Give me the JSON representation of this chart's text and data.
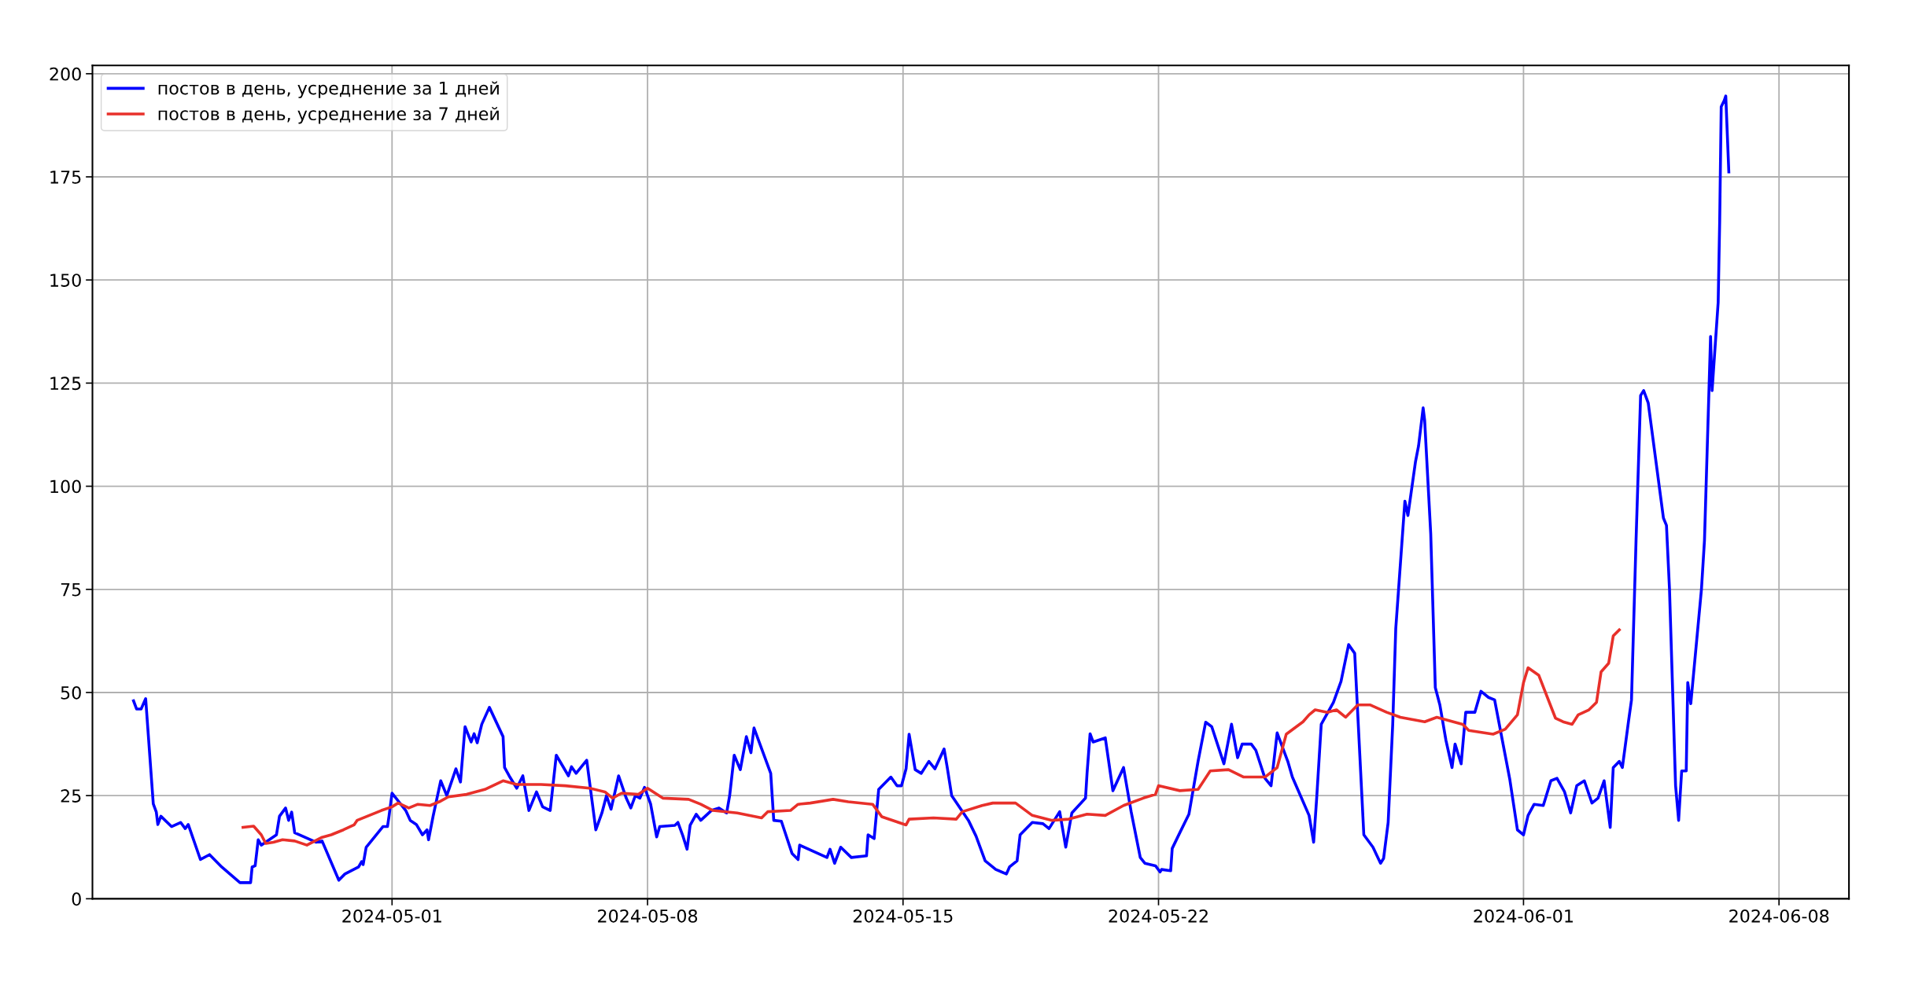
{
  "chart_data": {
    "type": "line",
    "xlim": [
      "2024-04-22T19:00",
      "2024-06-09T22:00"
    ],
    "xticks": [
      "2024-05-01",
      "2024-05-08",
      "2024-05-15",
      "2024-05-22",
      "2024-06-01",
      "2024-06-08"
    ],
    "ylim": [
      0,
      202
    ],
    "yticks": [
      0,
      25,
      50,
      75,
      100,
      125,
      150,
      175,
      200
    ],
    "grid": true,
    "legend": "top left",
    "line_style": "solid",
    "marker": "none",
    "series": [
      {
        "name": "постов в день, усреднение за 1 дней",
        "color": "#0000ff",
        "x": [
          "2024-04-23T22:00",
          "2024-04-24T00:00",
          "2024-04-24T03:00",
          "2024-04-24T06:00",
          "2024-04-24T11:00",
          "2024-04-24T13:00",
          "2024-04-24T14:00",
          "2024-04-24T16:00",
          "2024-04-24T23:00",
          "2024-04-25T05:00",
          "2024-04-25T08:00",
          "2024-04-25T10:00",
          "2024-04-25T18:00",
          "2024-04-26T00:00",
          "2024-04-26T08:00",
          "2024-04-26T20:00",
          "2024-04-27T03:00",
          "2024-04-27T04:00",
          "2024-04-27T06:00",
          "2024-04-27T08:00",
          "2024-04-27T10:00",
          "2024-04-27T20:00",
          "2024-04-27T22:00",
          "2024-04-28T02:00",
          "2024-04-28T04:00",
          "2024-04-28T06:00",
          "2024-04-28T08:00",
          "2024-04-28T22:00",
          "2024-04-29T02:00",
          "2024-04-29T13:00",
          "2024-04-29T17:00",
          "2024-04-30T02:00",
          "2024-04-30T04:00",
          "2024-04-30T05:00",
          "2024-04-30T07:00",
          "2024-04-30T18:00",
          "2024-04-30T21:00",
          "2024-04-30T22:00",
          "2024-05-01T00:00",
          "2024-05-01T09:00",
          "2024-05-01T12:00",
          "2024-05-01T16:00",
          "2024-05-01T20:00",
          "2024-05-01T23:00",
          "2024-05-02T00:00",
          "2024-05-02T03:00",
          "2024-05-02T08:00",
          "2024-05-02T12:00",
          "2024-05-02T18:00",
          "2024-05-02T21:00",
          "2024-05-03T00:00",
          "2024-05-03T04:00",
          "2024-05-03T06:00",
          "2024-05-03T08:00",
          "2024-05-03T11:00",
          "2024-05-03T16:00",
          "2024-05-04T01:00",
          "2024-05-04T02:00",
          "2024-05-04T05:00",
          "2024-05-04T10:00",
          "2024-05-04T14:00",
          "2024-05-04T18:00",
          "2024-05-04T23:00",
          "2024-05-05T03:00",
          "2024-05-05T08:00",
          "2024-05-05T12:00",
          "2024-05-05T20:00",
          "2024-05-05T22:00",
          "2024-05-06T01:00",
          "2024-05-06T08:00",
          "2024-05-06T14:00",
          "2024-05-06T18:00",
          "2024-05-06T21:00",
          "2024-05-07T00:00",
          "2024-05-07T05:00",
          "2024-05-07T10:00",
          "2024-05-07T13:00",
          "2024-05-07T16:00",
          "2024-05-07T19:00",
          "2024-05-07T22:00",
          "2024-05-08T02:00",
          "2024-05-08T06:00",
          "2024-05-08T08:00",
          "2024-05-08T18:00",
          "2024-05-08T20:00",
          "2024-05-08T23:00",
          "2024-05-09T02:00",
          "2024-05-09T04:00",
          "2024-05-09T08:00",
          "2024-05-09T11:00",
          "2024-05-09T18:00",
          "2024-05-09T23:00",
          "2024-05-10T04:00",
          "2024-05-10T06:00",
          "2024-05-10T09:00",
          "2024-05-10T13:00",
          "2024-05-10T17:00",
          "2024-05-10T20:00",
          "2024-05-10T22:00",
          "2024-05-11T09:00",
          "2024-05-11T11:00",
          "2024-05-11T16:00",
          "2024-05-11T23:00",
          "2024-05-12T03:00",
          "2024-05-12T04:00",
          "2024-05-12T22:00",
          "2024-05-13T00:00",
          "2024-05-13T03:00",
          "2024-05-13T07:00",
          "2024-05-13T14:00",
          "2024-05-14T00:00",
          "2024-05-14T01:00",
          "2024-05-14T05:00",
          "2024-05-14T08:00",
          "2024-05-14T16:00",
          "2024-05-14T20:00",
          "2024-05-14T23:00",
          "2024-05-15T02:00",
          "2024-05-15T04:00",
          "2024-05-15T08:00",
          "2024-05-15T12:00",
          "2024-05-15T17:00",
          "2024-05-15T21:00",
          "2024-05-16T03:00",
          "2024-05-16T05:00",
          "2024-05-16T08:00",
          "2024-05-16T19:00",
          "2024-05-17T00:00",
          "2024-05-17T06:00",
          "2024-05-17T13:00",
          "2024-05-17T20:00",
          "2024-05-17T22:00",
          "2024-05-18T03:00",
          "2024-05-18T05:00",
          "2024-05-18T13:00",
          "2024-05-18T20:00",
          "2024-05-19T00:00",
          "2024-05-19T07:00",
          "2024-05-19T11:00",
          "2024-05-19T15:00",
          "2024-05-20T00:00",
          "2024-05-20T01:00",
          "2024-05-20T03:00",
          "2024-05-20T05:00",
          "2024-05-20T13:00",
          "2024-05-20T18:00",
          "2024-05-21T01:00",
          "2024-05-21T06:00",
          "2024-05-21T12:00",
          "2024-05-21T15:00",
          "2024-05-21T22:00",
          "2024-05-22T01:00",
          "2024-05-22T02:00",
          "2024-05-22T08:00",
          "2024-05-22T09:00",
          "2024-05-22T14:00",
          "2024-05-22T20:00",
          "2024-05-23T02:00",
          "2024-05-23T07:00",
          "2024-05-23T11:00",
          "2024-05-23T15:00",
          "2024-05-23T19:00",
          "2024-05-24T00:00",
          "2024-05-24T04:00",
          "2024-05-24T07:00",
          "2024-05-24T09:00",
          "2024-05-24T13:00",
          "2024-05-24T16:00",
          "2024-05-24T22:00",
          "2024-05-25T02:00",
          "2024-05-25T06:00",
          "2024-05-25T13:00",
          "2024-05-25T16:00",
          "2024-05-26T03:00",
          "2024-05-26T06:00",
          "2024-05-26T08:00",
          "2024-05-26T11:00",
          "2024-05-26T19:00",
          "2024-05-27T00:00",
          "2024-05-27T05:00",
          "2024-05-27T09:00",
          "2024-05-27T15:00",
          "2024-05-27T21:00",
          "2024-05-28T02:00",
          "2024-05-28T04:00",
          "2024-05-28T07:00",
          "2024-05-28T10:00",
          "2024-05-28T12:00",
          "2024-05-28T18:00",
          "2024-05-28T20:00",
          "2024-05-29T01:00",
          "2024-05-29T03:00",
          "2024-05-29T06:00",
          "2024-05-29T07:00",
          "2024-05-29T11:00",
          "2024-05-29T14:00",
          "2024-05-29T17:00",
          "2024-05-29T21:00",
          "2024-05-30T01:00",
          "2024-05-30T03:00",
          "2024-05-30T07:00",
          "2024-05-30T10:00",
          "2024-05-30T16:00",
          "2024-05-30T20:00",
          "2024-05-31T01:00",
          "2024-05-31T05:00",
          "2024-05-31T15:00",
          "2024-05-31T20:00",
          "2024-06-01T00:00",
          "2024-06-01T03:00",
          "2024-06-01T07:00",
          "2024-06-01T13:00",
          "2024-06-01T18:00",
          "2024-06-01T22:00",
          "2024-06-02T03:00",
          "2024-06-02T07:00",
          "2024-06-02T11:00",
          "2024-06-02T16:00",
          "2024-06-02T21:00",
          "2024-06-03T01:00",
          "2024-06-03T05:00",
          "2024-06-03T09:00",
          "2024-06-03T11:00",
          "2024-06-03T15:00",
          "2024-06-03T17:00",
          "2024-06-03T21:00",
          "2024-06-03T23:00",
          "2024-06-04T02:00",
          "2024-06-04T05:00",
          "2024-06-04T07:00",
          "2024-06-04T10:00",
          "2024-06-04T20:00",
          "2024-06-04T22:00",
          "2024-06-05T00:00",
          "2024-06-05T04:00",
          "2024-06-05T06:00",
          "2024-06-05T08:00",
          "2024-06-05T11:00",
          "2024-06-05T12:00",
          "2024-06-05T14:00",
          "2024-06-05T21:00",
          "2024-06-05T23:00",
          "2024-06-06T03:00",
          "2024-06-06T04:00",
          "2024-06-06T08:00",
          "2024-06-06T09:00",
          "2024-06-06T10:00",
          "2024-06-06T12:00",
          "2024-06-06T13:00",
          "2024-06-06T15:00"
        ],
        "values": [
          48,
          46,
          46,
          48.5,
          23,
          21,
          18,
          20,
          17.5,
          18.5,
          17,
          18,
          9.5,
          10.7,
          7.7,
          3.9,
          3.9,
          7.7,
          8,
          14.3,
          13,
          15.5,
          20,
          22,
          19,
          21,
          16,
          13.7,
          14,
          4.5,
          6,
          7.7,
          9,
          8.3,
          12.5,
          17.5,
          17.5,
          20,
          25.6,
          21.4,
          19,
          18,
          15.5,
          16.7,
          14.3,
          20,
          28.6,
          25,
          31.5,
          28.3,
          41.7,
          38,
          40,
          37.8,
          42.3,
          46.4,
          39.3,
          31.8,
          29.8,
          26.8,
          29.8,
          21.4,
          25.9,
          22.3,
          21.4,
          34.8,
          29.8,
          32,
          30.4,
          33.6,
          16.7,
          20.8,
          25,
          21.7,
          29.8,
          24.4,
          22,
          25,
          24.4,
          27,
          23,
          15,
          17.5,
          17.8,
          18.5,
          15.5,
          12,
          17.8,
          20.5,
          19,
          21.4,
          22,
          20.8,
          25,
          34.8,
          31.3,
          39.3,
          35.4,
          41.4,
          30.4,
          19,
          18.8,
          11,
          9.5,
          13,
          10,
          12,
          8.6,
          12.5,
          10,
          10.4,
          15.5,
          14.6,
          26.5,
          29.5,
          27.4,
          27.4,
          31.5,
          39.9,
          31.3,
          30.4,
          33.3,
          31.5,
          36.3,
          32,
          25,
          19,
          15.2,
          9.2,
          7.1,
          6,
          7.7,
          9.2,
          15.5,
          18.5,
          18.2,
          17,
          21.1,
          12.5,
          20.8,
          24.4,
          30.4,
          40,
          38,
          39,
          26.2,
          31.8,
          21.1,
          10,
          8.6,
          8,
          6.5,
          7.1,
          6.8,
          12.2,
          16,
          20.5,
          33.3,
          42.8,
          41.7,
          37.2,
          32.7,
          42.3,
          34.2,
          37.5,
          37.5,
          37.5,
          36,
          29.2,
          27.4,
          40.2,
          33.3,
          29.5,
          20.2,
          13.7,
          24.4,
          42.3,
          47.6,
          52.7,
          61.6,
          59.5,
          15.5,
          12.5,
          8.6,
          9.8,
          18.5,
          42.3,
          65.5,
          96.4,
          92.9,
          106,
          109.8,
          119,
          116,
          88.4,
          51.2,
          47,
          38.4,
          31.8,
          37.5,
          32.7,
          45.2,
          45.2,
          50.3,
          48.8,
          48.2,
          28.9,
          16.7,
          15.5,
          20.2,
          22.9,
          22.6,
          28.6,
          29.2,
          25.9,
          20.8,
          27.4,
          28.6,
          23.2,
          24.4,
          28.6,
          17.3,
          31.8,
          33.3,
          31.8,
          42.9,
          48.2,
          86.9,
          122,
          123.2,
          120.2,
          92.3,
          90.5,
          75,
          27.4,
          19,
          31,
          31,
          52.4,
          47.3,
          75,
          86.9,
          136.3,
          123.2,
          144.6,
          164.3,
          192,
          193.5,
          194.6,
          176.2
        ]
      },
      {
        "name": "постов в день, усреднение за 7 дней",
        "color": "#e8302a",
        "x": [
          "2024-04-26T22:00",
          "2024-04-27T05:00",
          "2024-04-27T10:00",
          "2024-04-27T13:00",
          "2024-04-27T18:00",
          "2024-04-28T00:00",
          "2024-04-28T08:00",
          "2024-04-28T16:00",
          "2024-04-29T02:00",
          "2024-04-29T08:00",
          "2024-04-29T16:00",
          "2024-04-29T23:00",
          "2024-04-30T01:00",
          "2024-04-30T09:00",
          "2024-04-30T17:00",
          "2024-05-01T00:00",
          "2024-05-01T04:00",
          "2024-05-01T11:00",
          "2024-05-01T17:00",
          "2024-05-02T01:00",
          "2024-05-02T07:00",
          "2024-05-02T13:00",
          "2024-05-03T01:00",
          "2024-05-03T13:00",
          "2024-05-04T01:00",
          "2024-05-04T10:00",
          "2024-05-05T02:00",
          "2024-05-05T18:00",
          "2024-05-06T10:00",
          "2024-05-06T20:00",
          "2024-05-07T01:00",
          "2024-05-07T07:00",
          "2024-05-07T18:00",
          "2024-05-08T00:00",
          "2024-05-08T10:00",
          "2024-05-09T03:00",
          "2024-05-09T11:00",
          "2024-05-09T19:00",
          "2024-05-10T11:00",
          "2024-05-11T03:00",
          "2024-05-11T07:00",
          "2024-05-11T22:00",
          "2024-05-12T03:00",
          "2024-05-12T11:00",
          "2024-05-13T02:00",
          "2024-05-13T12:00",
          "2024-05-14T04:00",
          "2024-05-14T10:00",
          "2024-05-15T02:00",
          "2024-05-15T04:00",
          "2024-05-15T20:00",
          "2024-05-16T11:00",
          "2024-05-16T15:00",
          "2024-05-17T04:00",
          "2024-05-17T11:00",
          "2024-05-18T02:00",
          "2024-05-18T13:00",
          "2024-05-19T02:00",
          "2024-05-19T13:00",
          "2024-05-20T01:00",
          "2024-05-20T13:00",
          "2024-05-21T01:00",
          "2024-05-21T14:00",
          "2024-05-21T22:00",
          "2024-05-22T00:00",
          "2024-05-22T14:00",
          "2024-05-23T02:00",
          "2024-05-23T10:00",
          "2024-05-23T22:00",
          "2024-05-24T08:00",
          "2024-05-24T22:00",
          "2024-05-25T06:00",
          "2024-05-25T12:00",
          "2024-05-25T23:00",
          "2024-05-26T03:00",
          "2024-05-26T07:00",
          "2024-05-26T15:00",
          "2024-05-26T21:00",
          "2024-05-27T03:00",
          "2024-05-27T11:00",
          "2024-05-27T19:00",
          "2024-05-28T06:00",
          "2024-05-28T15:00",
          "2024-05-29T07:00",
          "2024-05-29T15:00",
          "2024-05-30T08:00",
          "2024-05-30T12:00",
          "2024-05-31T04:00",
          "2024-05-31T12:00",
          "2024-05-31T20:00",
          "2024-06-01T00:00",
          "2024-06-01T03:00",
          "2024-06-01T10:00",
          "2024-06-01T21:00",
          "2024-06-02T02:00",
          "2024-06-02T08:00",
          "2024-06-02T12:00",
          "2024-06-02T19:00",
          "2024-06-03T00:00",
          "2024-06-03T03:00",
          "2024-06-03T08:00",
          "2024-06-03T11:00",
          "2024-06-03T15:00"
        ],
        "values": [
          17.3,
          17.6,
          15.5,
          13.4,
          13.7,
          14.3,
          14,
          13,
          14.9,
          15.5,
          16.7,
          17.9,
          19,
          20.2,
          21.4,
          22.3,
          23.2,
          22,
          22.9,
          22.6,
          23.5,
          24.7,
          25.3,
          26.5,
          28.6,
          27.7,
          27.7,
          27.4,
          26.8,
          25.9,
          24.4,
          25.6,
          25.3,
          26.8,
          24.4,
          24.1,
          22.9,
          21.4,
          20.8,
          19.6,
          21.1,
          21.4,
          22.9,
          23.2,
          24.1,
          23.5,
          22.9,
          19.9,
          17.9,
          19.3,
          19.6,
          19.3,
          21.1,
          22.6,
          23.2,
          23.2,
          20.2,
          19,
          19.3,
          20.5,
          20.2,
          22.6,
          24.4,
          25.3,
          27.4,
          26.2,
          26.5,
          31,
          31.3,
          29.5,
          29.5,
          31.8,
          39.9,
          42.9,
          44.6,
          45.8,
          45.2,
          45.8,
          44,
          47,
          47,
          45.2,
          44,
          42.9,
          44,
          42.3,
          40.8,
          39.9,
          41.1,
          44.6,
          52.4,
          56,
          54.2,
          43.8,
          42.9,
          42.3,
          44.6,
          45.8,
          47.6,
          55,
          57.1,
          63.7,
          65.2
        ]
      }
    ]
  }
}
